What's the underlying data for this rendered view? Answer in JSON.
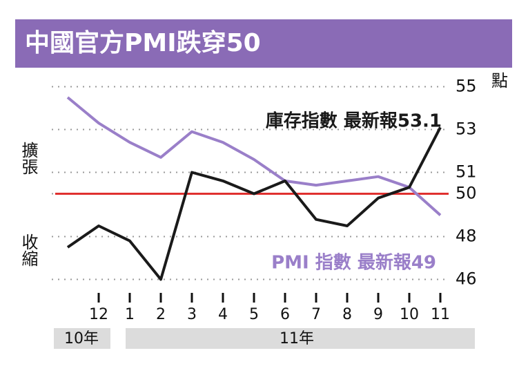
{
  "chart_data": {
    "type": "line",
    "title": "中國官方PMI跌穿50",
    "y_unit": "點",
    "expand_label": "擴張",
    "contract_label": "收縮",
    "categories": [
      null,
      "12",
      "1",
      "2",
      "3",
      "4",
      "5",
      "6",
      "7",
      "8",
      "9",
      "10",
      "11"
    ],
    "group_labels": [
      "10年",
      "11年"
    ],
    "series": [
      {
        "name": "PMI 指數 最新報49",
        "color": "#9a7fc9",
        "values": [
          54.5,
          53.3,
          52.4,
          51.7,
          52.9,
          52.4,
          51.6,
          50.6,
          50.4,
          50.6,
          50.8,
          50.3,
          49.0
        ]
      },
      {
        "name": "庫存指數 最新報53.1",
        "color": "#1a1a1a",
        "values": [
          47.5,
          48.5,
          47.8,
          46.0,
          51.0,
          50.6,
          50.0,
          50.6,
          48.8,
          48.5,
          49.8,
          50.3,
          53.1
        ]
      }
    ],
    "reference_line": 50,
    "reference_color": "#e0302f",
    "ylim": [
      45.5,
      55.5
    ],
    "yticks": [
      46,
      48,
      50,
      51,
      53,
      55
    ],
    "grid": true
  }
}
